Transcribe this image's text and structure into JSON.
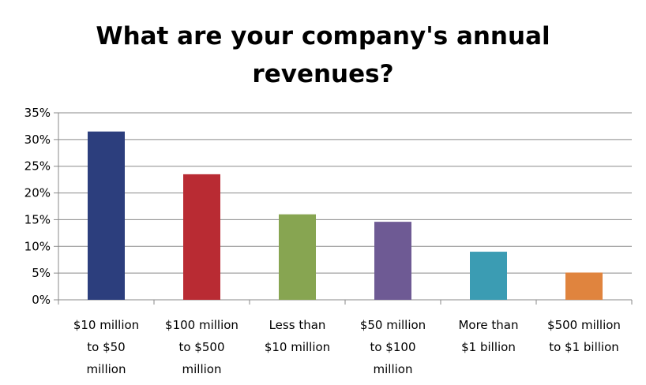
{
  "chart_data": {
    "type": "bar",
    "title_lines": [
      "What are your company's annual",
      "revenues?"
    ],
    "categories": [
      [
        "$10 million",
        "to $50",
        "million"
      ],
      [
        "$100 million",
        "to $500",
        "million"
      ],
      [
        "Less than",
        "$10 million"
      ],
      [
        "$50 million",
        "to $100",
        "million"
      ],
      [
        "More than",
        "$1 billion"
      ],
      [
        "$500 million",
        "to $1 billion"
      ]
    ],
    "values": [
      31.5,
      23.5,
      16.0,
      14.6,
      9.0,
      5.1
    ],
    "colors": [
      "#2C3E7D",
      "#B92B33",
      "#87A551",
      "#6E5A94",
      "#3B9CB3",
      "#E0843E"
    ],
    "ylim": [
      0,
      35
    ],
    "yticks": [
      0,
      5,
      10,
      15,
      20,
      25,
      30,
      35
    ],
    "ytick_labels": [
      "0%",
      "5%",
      "10%",
      "15%",
      "20%",
      "25%",
      "30%",
      "35%"
    ],
    "grid": true,
    "legend": "none"
  }
}
